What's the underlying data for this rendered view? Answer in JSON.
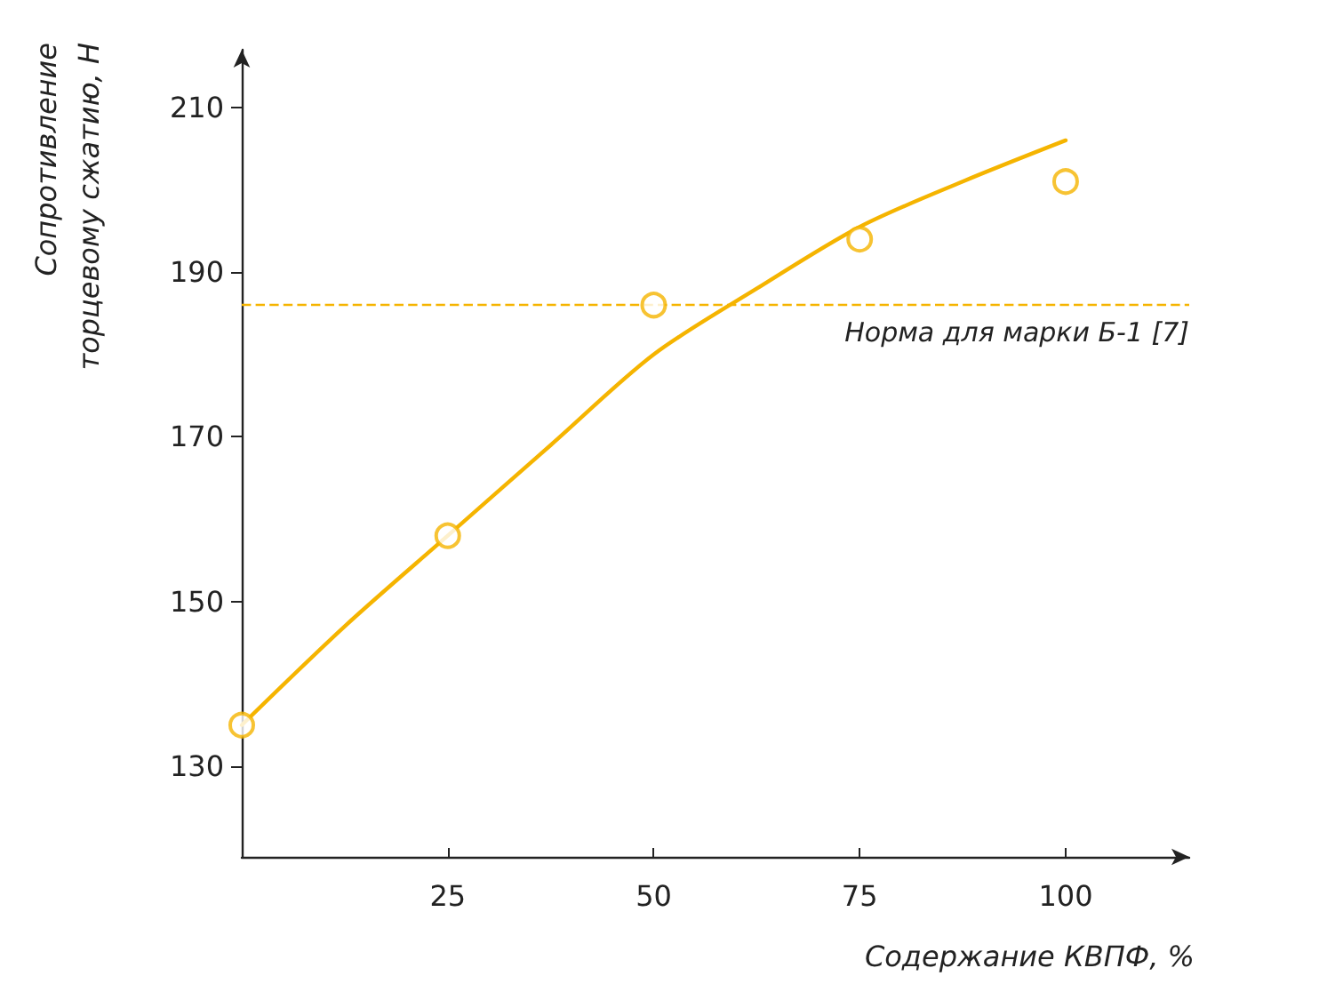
{
  "chart_data": {
    "type": "scatter",
    "xlabel": "Содержание КВПФ, %",
    "ylabel": "Сопротивление\nторцевому сжатию, Н",
    "xlim": [
      0,
      115
    ],
    "xticks": [
      25,
      50,
      75,
      100
    ],
    "ylim": [
      119,
      217
    ],
    "yticks": [
      130,
      150,
      170,
      190,
      210
    ],
    "grid": false,
    "marker": "circle",
    "series": [
      {
        "color": "#f5b400",
        "x": [
          0,
          25,
          50,
          75,
          100
        ],
        "values": [
          135,
          158,
          186,
          194,
          201
        ]
      },
      {
        "type": "line",
        "color": "#f5b400",
        "line_style": "solid",
        "marker": "none",
        "x": [
          0,
          12.5,
          25,
          37.5,
          50,
          62.5,
          75,
          87.5,
          100
        ],
        "values": [
          135,
          147,
          158,
          169,
          180,
          188,
          195.5,
          201,
          206
        ]
      }
    ],
    "ref_lines": [
      {
        "axis": "y",
        "value": 186,
        "label": "Норма для марки Б-1 [7]",
        "color": "#f5b400",
        "line_style": "dashed"
      }
    ]
  }
}
